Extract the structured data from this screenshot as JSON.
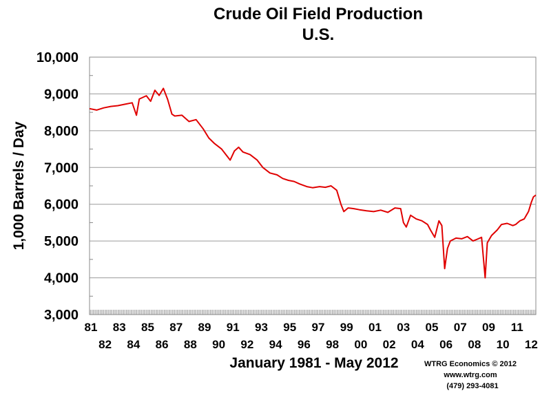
{
  "chart_data": {
    "type": "line",
    "title": "Crude Oil Field Production",
    "subtitle": "U.S.",
    "xlabel": "January 1981 - May 2012",
    "ylabel": "1,000 Barrels / Day",
    "ylim": [
      3000,
      10000
    ],
    "xlim": [
      1981.0,
      2012.42
    ],
    "yticks": [
      "3,000",
      "4,000",
      "5,000",
      "6,000",
      "7,000",
      "8,000",
      "9,000",
      "10,000"
    ],
    "xticks_odd": [
      "81",
      "83",
      "85",
      "87",
      "89",
      "91",
      "93",
      "95",
      "97",
      "99",
      "01",
      "03",
      "05",
      "07",
      "09",
      "11"
    ],
    "xticks_even": [
      "82",
      "84",
      "86",
      "88",
      "90",
      "92",
      "94",
      "96",
      "98",
      "00",
      "02",
      "04",
      "06",
      "08",
      "10",
      "12"
    ],
    "grid": true,
    "line_color": "#e00000",
    "series": [
      {
        "points": [
          [
            1981.0,
            8600
          ],
          [
            1981.5,
            8560
          ],
          [
            1982.0,
            8620
          ],
          [
            1982.5,
            8660
          ],
          [
            1983.0,
            8680
          ],
          [
            1983.5,
            8720
          ],
          [
            1984.0,
            8760
          ],
          [
            1984.3,
            8420
          ],
          [
            1984.5,
            8860
          ],
          [
            1985.0,
            8950
          ],
          [
            1985.3,
            8800
          ],
          [
            1985.6,
            9100
          ],
          [
            1985.9,
            8960
          ],
          [
            1986.2,
            9150
          ],
          [
            1986.5,
            8850
          ],
          [
            1986.8,
            8450
          ],
          [
            1987.0,
            8400
          ],
          [
            1987.5,
            8420
          ],
          [
            1988.0,
            8250
          ],
          [
            1988.5,
            8300
          ],
          [
            1989.0,
            8050
          ],
          [
            1989.4,
            7800
          ],
          [
            1989.8,
            7650
          ],
          [
            1990.3,
            7500
          ],
          [
            1990.6,
            7350
          ],
          [
            1990.9,
            7200
          ],
          [
            1991.2,
            7450
          ],
          [
            1991.5,
            7550
          ],
          [
            1991.8,
            7420
          ],
          [
            1992.3,
            7350
          ],
          [
            1992.8,
            7200
          ],
          [
            1993.2,
            7000
          ],
          [
            1993.7,
            6850
          ],
          [
            1994.2,
            6800
          ],
          [
            1994.6,
            6700
          ],
          [
            1995.0,
            6650
          ],
          [
            1995.4,
            6620
          ],
          [
            1995.8,
            6550
          ],
          [
            1996.3,
            6480
          ],
          [
            1996.7,
            6450
          ],
          [
            1997.2,
            6480
          ],
          [
            1997.6,
            6460
          ],
          [
            1998.0,
            6500
          ],
          [
            1998.4,
            6380
          ],
          [
            1998.7,
            6000
          ],
          [
            1998.9,
            5800
          ],
          [
            1999.2,
            5900
          ],
          [
            1999.6,
            5880
          ],
          [
            2000.0,
            5850
          ],
          [
            2000.5,
            5820
          ],
          [
            2001.0,
            5800
          ],
          [
            2001.5,
            5840
          ],
          [
            2002.0,
            5780
          ],
          [
            2002.5,
            5900
          ],
          [
            2002.9,
            5880
          ],
          [
            2003.1,
            5500
          ],
          [
            2003.3,
            5380
          ],
          [
            2003.6,
            5700
          ],
          [
            2004.0,
            5600
          ],
          [
            2004.4,
            5550
          ],
          [
            2004.8,
            5450
          ],
          [
            2005.0,
            5300
          ],
          [
            2005.3,
            5100
          ],
          [
            2005.6,
            5550
          ],
          [
            2005.8,
            5420
          ],
          [
            2006.0,
            4250
          ],
          [
            2006.2,
            4800
          ],
          [
            2006.4,
            5000
          ],
          [
            2006.8,
            5080
          ],
          [
            2007.2,
            5060
          ],
          [
            2007.6,
            5120
          ],
          [
            2008.0,
            5000
          ],
          [
            2008.3,
            5050
          ],
          [
            2008.6,
            5100
          ],
          [
            2008.85,
            4000
          ],
          [
            2009.0,
            4950
          ],
          [
            2009.3,
            5150
          ],
          [
            2009.7,
            5300
          ],
          [
            2010.0,
            5450
          ],
          [
            2010.4,
            5480
          ],
          [
            2010.8,
            5420
          ],
          [
            2011.0,
            5450
          ],
          [
            2011.3,
            5550
          ],
          [
            2011.6,
            5600
          ],
          [
            2011.9,
            5800
          ],
          [
            2012.1,
            6050
          ],
          [
            2012.25,
            6200
          ],
          [
            2012.42,
            6250
          ]
        ]
      }
    ]
  },
  "credits": {
    "line1": "WTRG Economics © 2012",
    "line2": "www.wtrg.com",
    "line3": "(479) 293-4081"
  }
}
